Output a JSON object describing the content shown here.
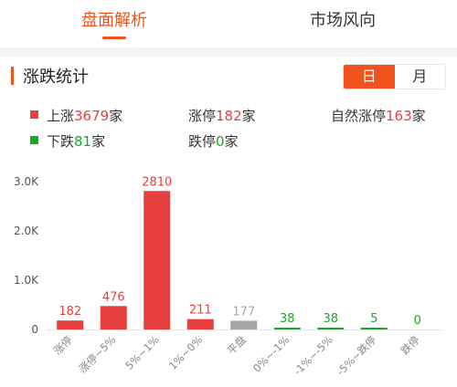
{
  "tabs": [
    {
      "label": "盘面解析",
      "active": true
    },
    {
      "label": "市场风向",
      "active": false
    }
  ],
  "section": {
    "title": "涨跌统计",
    "period_options": [
      {
        "label": "日",
        "active": true
      },
      {
        "label": "月",
        "active": false
      }
    ]
  },
  "stats": {
    "up": {
      "prefix": "上涨",
      "value": "3679",
      "suffix": "家"
    },
    "limit_up": {
      "prefix": "涨停",
      "value": "182",
      "suffix": "家"
    },
    "natural_limit_up": {
      "prefix": "自然涨停",
      "value": "163",
      "suffix": "家"
    },
    "down": {
      "prefix": "下跌",
      "value": "81",
      "suffix": "家"
    },
    "limit_down": {
      "prefix": "跌停",
      "value": "0",
      "suffix": "家"
    }
  },
  "colors": {
    "accent": "#f0531b",
    "up": "#e8403f",
    "flat": "#a6a6a6",
    "down": "#1aa62b"
  },
  "chart_data": {
    "type": "bar",
    "categories": [
      "涨停",
      "涨停~5%",
      "5%~1%",
      "1%~0%",
      "平盘",
      "0%~-1%",
      "-1%~-5%",
      "-5%~跌停",
      "跌停"
    ],
    "values": [
      182,
      476,
      2810,
      211,
      177,
      38,
      38,
      5,
      0
    ],
    "value_labels": [
      "182",
      "476",
      "2810",
      "211",
      "177",
      "38",
      "38",
      "5",
      "0"
    ],
    "bar_colors": [
      "up",
      "up",
      "up",
      "up",
      "flat",
      "down",
      "down",
      "down",
      "down"
    ],
    "y_ticks": [
      0,
      1000,
      2000,
      3000
    ],
    "y_tick_labels": [
      "0",
      "1.0K",
      "2.0K",
      "3.0K"
    ],
    "ylim": [
      0,
      3000
    ],
    "grid": false,
    "title": "",
    "xlabel": "",
    "ylabel": ""
  }
}
